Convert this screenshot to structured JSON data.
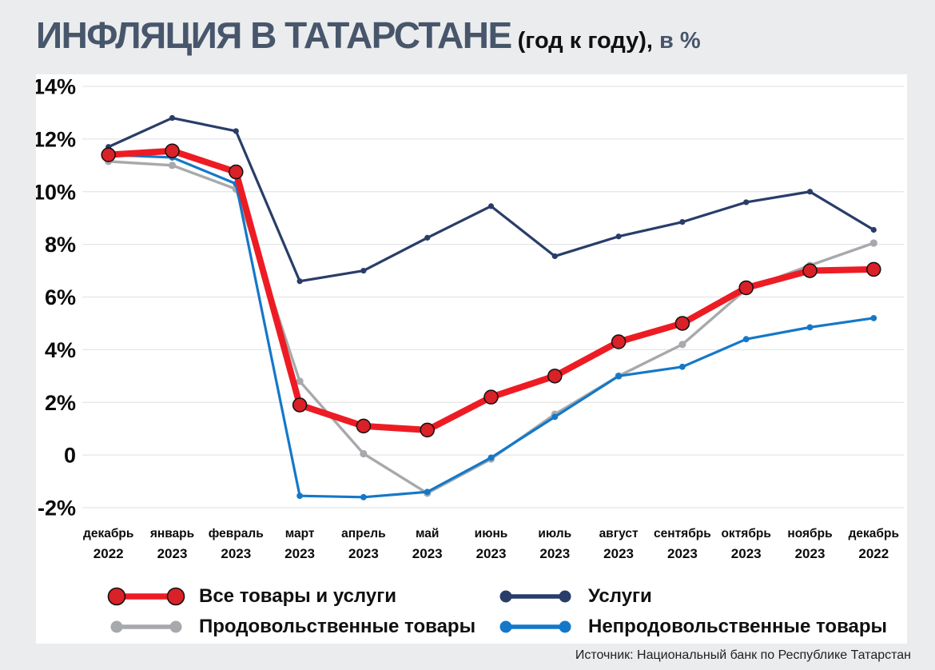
{
  "title": {
    "main": "ИНФЛЯЦИЯ В ТАТАРСТАНЕ",
    "sub": "(год к году),",
    "unit": "в %"
  },
  "source": "Источник: Национальный банк по Республике Татарстан",
  "colors": {
    "background": "#ebeced",
    "panel": "#ffffff",
    "title": "#47566b",
    "grid": "#e4e5e7",
    "axis_text": "#0b0b0b",
    "red": "#ed1c24",
    "red_marker": "#d92128",
    "navy": "#293d69",
    "gray": "#a7a9ac",
    "blue": "#1478c8"
  },
  "chart_data": {
    "type": "line",
    "title": "ИНФЛЯЦИЯ В ТАТАРСТАНЕ (год к году), в %",
    "xlabel": "",
    "ylabel": "",
    "ylim": [
      -2,
      14
    ],
    "grid": true,
    "legend_position": "bottom",
    "y_ticks": [
      {
        "label": "14%",
        "value": 14
      },
      {
        "label": "12%",
        "value": 12
      },
      {
        "label": "10%",
        "value": 10
      },
      {
        "label": "8%",
        "value": 8
      },
      {
        "label": "6%",
        "value": 6
      },
      {
        "label": "4%",
        "value": 4
      },
      {
        "label": "2%",
        "value": 2
      },
      {
        "label": "0",
        "value": 0
      },
      {
        "label": "-2%",
        "value": -2
      }
    ],
    "categories": [
      {
        "month": "декабрь",
        "year": "2022"
      },
      {
        "month": "январь",
        "year": "2023"
      },
      {
        "month": "февраль",
        "year": "2023"
      },
      {
        "month": "март",
        "year": "2023"
      },
      {
        "month": "апрель",
        "year": "2023"
      },
      {
        "month": "май",
        "year": "2023"
      },
      {
        "month": "июнь",
        "year": "2023"
      },
      {
        "month": "июль",
        "year": "2023"
      },
      {
        "month": "август",
        "year": "2023"
      },
      {
        "month": "сентябрь",
        "year": "2023"
      },
      {
        "month": "октябрь",
        "year": "2023"
      },
      {
        "month": "ноябрь",
        "year": "2023"
      },
      {
        "month": "декабрь",
        "year": "2022"
      }
    ],
    "series": [
      {
        "name": "Услуги",
        "color_key": "navy",
        "values": [
          11.7,
          12.8,
          12.3,
          6.6,
          7.0,
          8.25,
          9.45,
          7.55,
          8.3,
          8.85,
          9.6,
          10.0,
          8.55
        ]
      },
      {
        "name": "Продовольственные товары",
        "color_key": "gray",
        "values": [
          11.15,
          11.0,
          10.1,
          2.8,
          0.05,
          -1.45,
          -0.15,
          1.55,
          3.0,
          4.2,
          6.3,
          7.2,
          8.05
        ]
      },
      {
        "name": "Непродовольственные товары",
        "color_key": "blue",
        "values": [
          11.4,
          11.3,
          10.3,
          -1.55,
          -1.6,
          -1.4,
          -0.1,
          1.45,
          3.0,
          3.35,
          4.4,
          4.85,
          5.2
        ]
      },
      {
        "name": "Все товары и услуги",
        "color_key": "red",
        "values": [
          11.4,
          11.55,
          10.75,
          1.9,
          1.1,
          0.95,
          2.2,
          3.0,
          4.3,
          5.0,
          6.35,
          7.0,
          7.05
        ]
      }
    ]
  },
  "legend": {
    "items": [
      {
        "label": "Все товары и услуги",
        "color_key": "red"
      },
      {
        "label": "Услуги",
        "color_key": "navy"
      },
      {
        "label": "Продовольственные товары",
        "color_key": "gray"
      },
      {
        "label": "Непродовольственные товары",
        "color_key": "blue"
      }
    ]
  }
}
